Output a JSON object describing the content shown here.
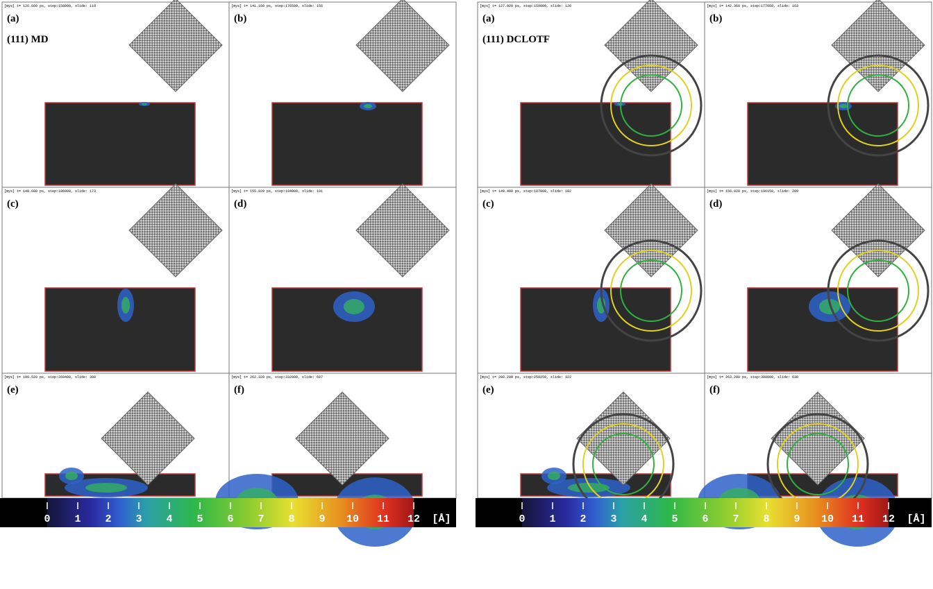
{
  "left": {
    "title": "(111) MD",
    "panels": [
      {
        "label": "(a)",
        "header": "[mys] t= 126.660 ps, step:158000, slide: 110"
      },
      {
        "label": "(b)",
        "header": "[mys] t= 141.160 ps, step:176500, slide: 156"
      },
      {
        "label": "(c)",
        "header": "[mys] t= 148.680 ps, step:186000, slide: 173"
      },
      {
        "label": "(d)",
        "header": "[mys] t= 155.920 ps, step:194900, slide: 191"
      },
      {
        "label": "(e)",
        "header": "[mys] t= 199.520 ps, step:269400, slide: 300"
      },
      {
        "label": "(f)",
        "header": "[mys] t= 262.320 ps, step:332900, slide: 607"
      }
    ],
    "colorbar": {
      "ticks": [
        "0",
        "1",
        "2",
        "3",
        "4",
        "5",
        "6",
        "7",
        "8",
        "9",
        "10",
        "11",
        "12"
      ],
      "unit": "[Å]"
    }
  },
  "right": {
    "title": "(111) DCLOTF",
    "panels": [
      {
        "label": "(a)",
        "header": "[mys] t= 127.920 ps, step:159900, slide: 120"
      },
      {
        "label": "(b)",
        "header": "[mys] t= 142.360 ps, step:177950, slide: 163"
      },
      {
        "label": "(c)",
        "header": "[mys] t= 149.400 ps, step:187000, slide: 182"
      },
      {
        "label": "(d)",
        "header": "[mys] t= 156.920 ps, step:196150, slide: 209"
      },
      {
        "label": "(e)",
        "header": "[mys] t= 200.200 ps, step:250250, slide: 322"
      },
      {
        "label": "(f)",
        "header": "[mys] t= 263.200 ps, step:308000, slide: 638"
      }
    ],
    "colorbar": {
      "ticks": [
        "0",
        "1",
        "2",
        "3",
        "4",
        "5",
        "6",
        "7",
        "8",
        "9",
        "10",
        "11",
        "12"
      ],
      "unit": "[Å]"
    }
  }
}
